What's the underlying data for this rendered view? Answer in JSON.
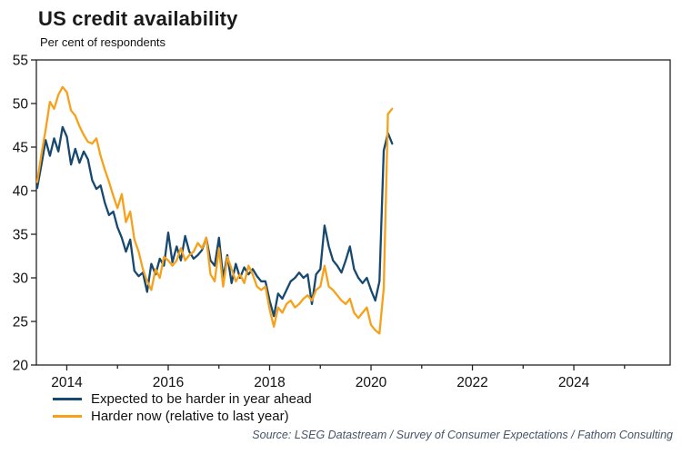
{
  "header": {
    "title": "US credit availability",
    "subtitle": "Per cent of respondents"
  },
  "source": "Source: LSEG Datastream / Survey of Consumer Expectations  / Fathom Consulting",
  "chart_data": {
    "type": "line",
    "title": "US credit availability",
    "subtitle": "Per cent of respondents",
    "xlabel": "",
    "ylabel": "Per cent of respondents",
    "xlim": [
      2013.4,
      2025.9
    ],
    "ylim": [
      20,
      55
    ],
    "ytick_step": 5,
    "yticks": [
      20,
      25,
      30,
      35,
      40,
      45,
      50,
      55
    ],
    "xticks_labeled": [
      2014,
      2016,
      2018,
      2020,
      2022,
      2024
    ],
    "xticks_minor": [
      2014,
      2015,
      2016,
      2017,
      2018,
      2019,
      2020,
      2021,
      2022,
      2023,
      2024,
      2025
    ],
    "grid": false,
    "legend_position": "bottom-left",
    "frame_color": "#222222",
    "x_start": 2013.417,
    "x_step": 0.083333,
    "series": [
      {
        "name": "Expected to be harder in year ahead",
        "color": "#17486f",
        "values": [
          40.3,
          43.0,
          45.8,
          44.0,
          46.0,
          44.5,
          47.3,
          46.2,
          43.0,
          44.8,
          43.2,
          44.5,
          43.6,
          41.2,
          40.2,
          40.6,
          38.6,
          37.2,
          37.6,
          35.8,
          34.6,
          33.0,
          34.4,
          30.8,
          30.2,
          30.6,
          28.4,
          31.6,
          30.4,
          32.2,
          31.4,
          35.2,
          31.8,
          33.6,
          32.0,
          34.8,
          33.0,
          32.2,
          32.6,
          33.2,
          34.6,
          32.0,
          31.4,
          34.6,
          30.0,
          32.6,
          29.4,
          31.6,
          30.0,
          31.2,
          30.4,
          31.0,
          30.2,
          29.6,
          29.6,
          27.4,
          25.6,
          28.2,
          27.6,
          28.6,
          29.6,
          30.0,
          30.6,
          30.0,
          30.4,
          27.0,
          30.4,
          31.0,
          36.0,
          33.6,
          32.0,
          31.4,
          30.6,
          32.0,
          33.6,
          31.0,
          30.0,
          29.4,
          30.0,
          28.6,
          27.4,
          29.6,
          44.6,
          46.6,
          45.4
        ]
      },
      {
        "name": "Harder now (relative to last year)",
        "color": "#f7a11a",
        "values": [
          41.0,
          44.2,
          47.0,
          50.2,
          49.4,
          51.0,
          51.9,
          51.3,
          49.2,
          48.6,
          47.4,
          46.4,
          45.6,
          45.4,
          46.0,
          44.0,
          42.4,
          41.0,
          39.4,
          38.0,
          39.6,
          36.4,
          37.6,
          34.4,
          33.0,
          31.0,
          29.6,
          28.6,
          31.0,
          30.0,
          32.4,
          32.0,
          31.4,
          32.0,
          33.4,
          32.0,
          32.6,
          33.0,
          34.0,
          33.4,
          34.6,
          30.4,
          29.6,
          33.4,
          29.0,
          32.4,
          31.0,
          29.6,
          30.4,
          29.4,
          31.4,
          30.4,
          29.0,
          28.6,
          29.0,
          26.4,
          24.4,
          26.6,
          26.0,
          27.0,
          27.4,
          26.6,
          27.0,
          27.6,
          28.0,
          27.4,
          28.6,
          29.0,
          31.4,
          29.0,
          28.6,
          28.0,
          27.4,
          27.0,
          27.6,
          26.0,
          25.4,
          26.0,
          26.6,
          24.6,
          24.0,
          23.6,
          28.8,
          48.8,
          49.4
        ]
      }
    ]
  }
}
